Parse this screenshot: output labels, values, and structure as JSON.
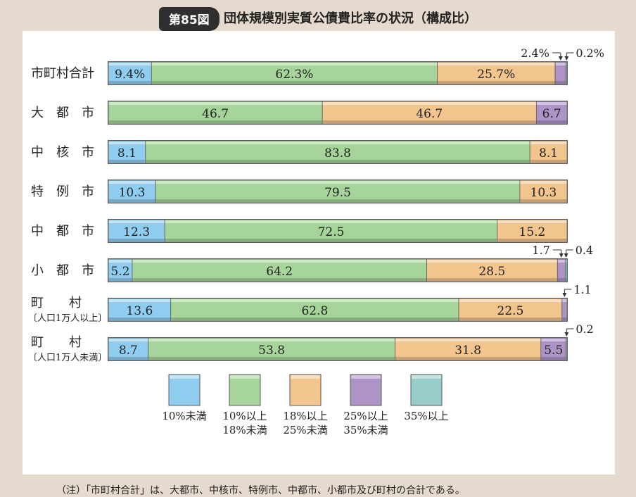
{
  "header": {
    "badge": "第85図",
    "title": "団体規模別実質公債費比率の状況（構成比）"
  },
  "note": "（注）「市町村合計」は、大都市、中核市、特例市、中都市、小都市及び町村の合計である。",
  "colors": {
    "c1": "#8ecdf0",
    "c2": "#a6d49a",
    "c3": "#f2c48e",
    "c4": "#ad93c6",
    "c5": "#97cccb"
  },
  "chart_data": {
    "type": "bar",
    "orientation": "horizontal",
    "stacked": true,
    "unit": "%",
    "legend_position": "bottom",
    "categories": [
      [
        "市町村合計"
      ],
      [
        "大　都　市"
      ],
      [
        "中　核　市"
      ],
      [
        "特　例　市"
      ],
      [
        "中　都　市"
      ],
      [
        "小　都　市"
      ],
      [
        "町　　村",
        "〔人口1万人以上〕"
      ],
      [
        "町　　村",
        "〔人口1万人未満〕"
      ]
    ],
    "series": [
      {
        "name": "10%未満",
        "color_key": "c1",
        "values": [
          9.4,
          0,
          8.1,
          10.3,
          12.3,
          5.2,
          13.6,
          8.7
        ],
        "labels": [
          "9.4%",
          "",
          "8.1",
          "10.3",
          "12.3",
          "5.2",
          "13.6",
          "8.7"
        ]
      },
      {
        "name": "10%以上\n18%未満",
        "color_key": "c2",
        "values": [
          62.3,
          46.7,
          83.8,
          79.5,
          72.5,
          64.2,
          62.8,
          53.8
        ],
        "labels": [
          "62.3%",
          "46.7",
          "83.8",
          "79.5",
          "72.5",
          "64.2",
          "62.8",
          "53.8"
        ]
      },
      {
        "name": "18%以上\n25%未満",
        "color_key": "c3",
        "values": [
          25.7,
          46.7,
          8.1,
          10.3,
          15.2,
          28.5,
          22.5,
          31.8
        ],
        "labels": [
          "25.7%",
          "46.7",
          "8.1",
          "10.3",
          "15.2",
          "28.5",
          "22.5",
          "31.8"
        ]
      },
      {
        "name": "25%以上\n35%未満",
        "color_key": "c4",
        "values": [
          2.4,
          6.7,
          0,
          0,
          0,
          1.7,
          1.1,
          5.5
        ],
        "labels": [
          "",
          "6.7",
          "",
          "",
          "",
          "",
          "",
          "5.5"
        ]
      },
      {
        "name": "35%以上",
        "color_key": "c5",
        "values": [
          0.2,
          0,
          0,
          0,
          0,
          0.4,
          0,
          0.2
        ],
        "labels": [
          "",
          "",
          "",
          "",
          "",
          "",
          "",
          ""
        ]
      }
    ],
    "callouts": [
      {
        "row": 0,
        "items": [
          {
            "series": 3,
            "text": "2.4%"
          },
          {
            "series": 4,
            "text": "0.2%"
          }
        ]
      },
      {
        "row": 5,
        "items": [
          {
            "series": 3,
            "text": "1.7"
          },
          {
            "series": 4,
            "text": "0.4"
          }
        ]
      },
      {
        "row": 6,
        "items": [
          {
            "series": 3,
            "text": "1.1"
          }
        ]
      },
      {
        "row": 7,
        "items": [
          {
            "series": 4,
            "text": "0.2"
          }
        ]
      }
    ]
  }
}
